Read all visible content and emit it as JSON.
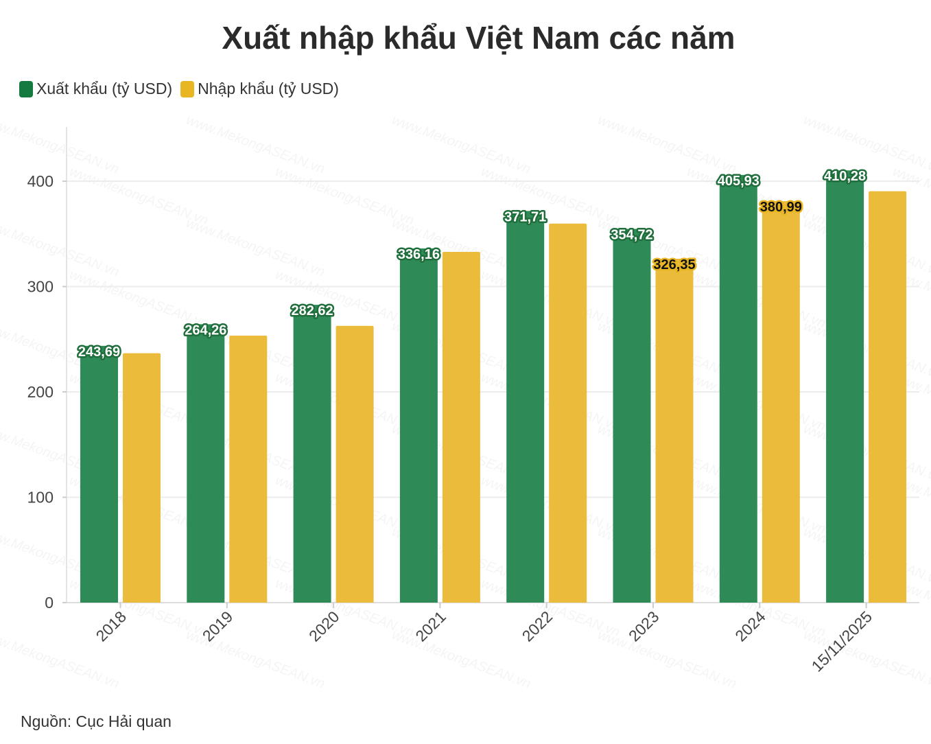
{
  "chart_data": {
    "type": "bar",
    "title": "Xuất nhập khẩu Việt Nam các năm",
    "categories": [
      "2018",
      "2019",
      "2020",
      "2021",
      "2022",
      "2023",
      "2024",
      "15/11/2025"
    ],
    "series": [
      {
        "name": "Xuất khẩu (tỷ USD)",
        "color": "#2e8b57",
        "values": [
          243.69,
          264.26,
          282.62,
          336.16,
          371.71,
          354.72,
          405.93,
          410.28
        ],
        "labels": [
          "243,69",
          "264,26",
          "282,62",
          "336,16",
          "371,71",
          "354,72",
          "405,93",
          "410,28"
        ]
      },
      {
        "name": "Nhập khẩu (tỷ USD)",
        "color": "#ebbb3b",
        "values": [
          236.7,
          253.4,
          262.7,
          332.9,
          359.8,
          326.35,
          380.99,
          390.5
        ],
        "labels": [
          "",
          "",
          "",
          "",
          "",
          "326,35",
          "380,99",
          ""
        ]
      }
    ],
    "ylim": [
      0,
      450
    ],
    "yticks": [
      0,
      100,
      200,
      300,
      400
    ],
    "xlabel": "",
    "ylabel": "",
    "grid": true,
    "legend": "top-left"
  },
  "legend": {
    "export_label": "Xuất khẩu (tỷ USD)",
    "import_label": "Nhập khẩu (tỷ USD)",
    "export_color": "#157a3f",
    "import_color": "#e8b523"
  },
  "source": "Nguồn: Cục Hải quan",
  "watermark": "www.MekongASEAN.vn"
}
